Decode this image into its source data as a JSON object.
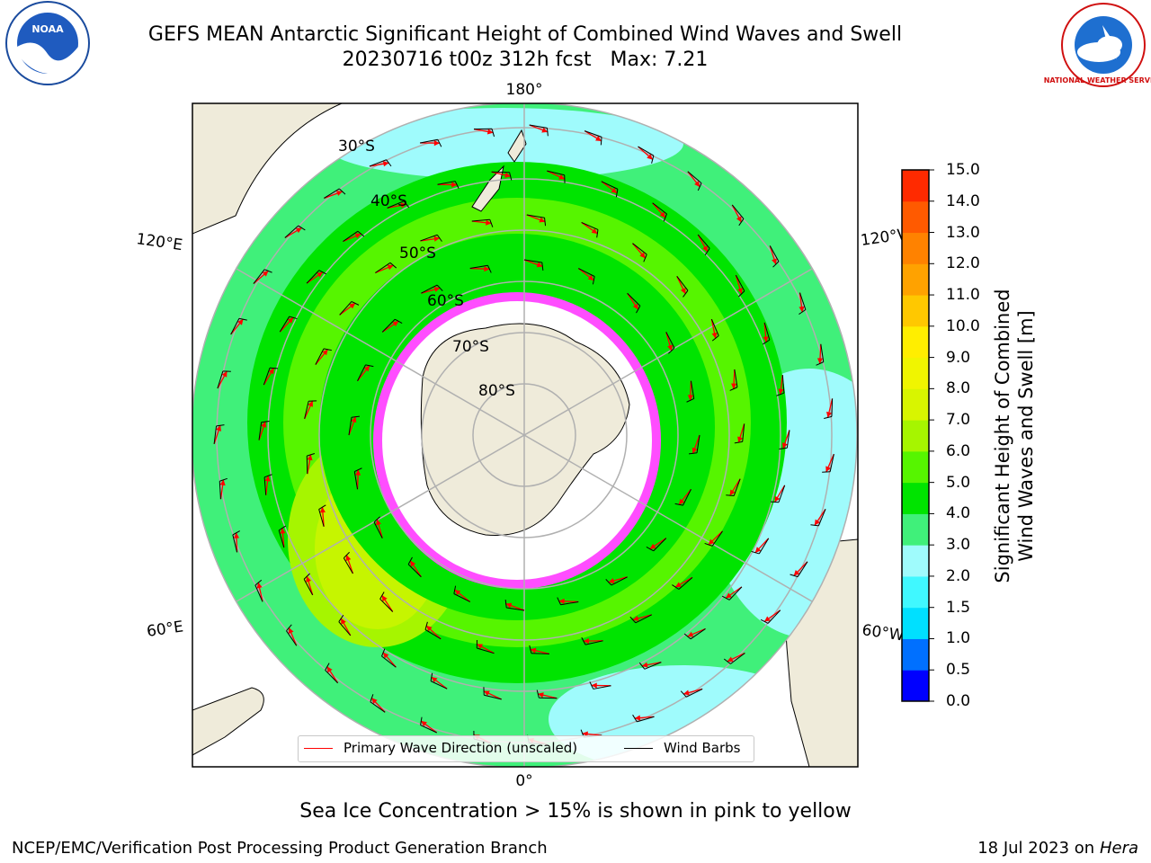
{
  "title": {
    "line1": "GEFS MEAN Antarctic Significant Height of Combined Wind Waves and Swell",
    "line2": "20230716 t00z 312h fcst   Max: 7.21"
  },
  "logos": {
    "left": "NOAA",
    "right": "NATIONAL WEATHER SERVICE"
  },
  "map": {
    "longitude_labels": {
      "top": "180°",
      "bottom": "0°",
      "upper_left": "120°E",
      "upper_right": "120°W",
      "lower_left": "60°E",
      "lower_right": "60°W"
    },
    "latitude_labels": [
      "30°S",
      "40°S",
      "50°S",
      "60°S",
      "70°S",
      "80°S"
    ],
    "colors": {
      "land": "#efebda",
      "ocean_low": "#9ffbfc",
      "ocean_mid": "#40f07a",
      "ocean_high": "#00e400",
      "ocean_peak": "#c6f500",
      "ice": "#ff4dff",
      "arrow": "#ff0000",
      "barb": "#000000",
      "grid": "#b0b0b0"
    }
  },
  "legend": {
    "items": [
      {
        "label": "Primary Wave Direction (unscaled)",
        "color": "#ff0000"
      },
      {
        "label": "Wind Barbs",
        "color": "#000000"
      }
    ]
  },
  "colorbar": {
    "label_line1": "Significant Height of Combined",
    "label_line2": "Wind Waves and Swell [m]",
    "ticks": [
      "0.0",
      "0.5",
      "1.0",
      "1.5",
      "2.0",
      "3.0",
      "4.0",
      "5.0",
      "6.0",
      "7.0",
      "8.0",
      "9.0",
      "10.0",
      "11.0",
      "12.0",
      "13.0",
      "14.0",
      "15.0"
    ],
    "colors": [
      "#0000ff",
      "#0070ff",
      "#00e0ff",
      "#40f8ff",
      "#9ffbfc",
      "#40f07a",
      "#00e400",
      "#56f500",
      "#a6f500",
      "#d8f500",
      "#f0f500",
      "#ffee00",
      "#ffc800",
      "#ffa200",
      "#ff8200",
      "#ff5a00",
      "#ff2a00"
    ]
  },
  "footer": {
    "ice_note": "Sea Ice Concentration > 15% is shown in pink to yellow",
    "credit_left": "NCEP/EMC/Verification Post Processing Product Generation Branch",
    "credit_date": "18 Jul 2023 on ",
    "credit_machine": "Hera"
  }
}
